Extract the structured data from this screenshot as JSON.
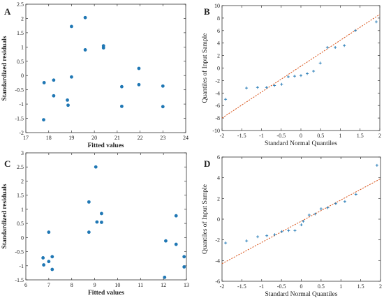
{
  "chart_data": [
    {
      "panel": "A",
      "type": "scatter",
      "xlabel": "Fitted values",
      "ylabel": "Standardized residuals",
      "xlim": [
        17,
        24
      ],
      "ylim": [
        -2,
        2.5
      ],
      "xticks": [
        17,
        18,
        19,
        20,
        21,
        22,
        23,
        24
      ],
      "xtick_labels": [
        "17",
        "18",
        "19",
        "20",
        "21",
        "22",
        "23",
        "24"
      ],
      "yticks": [
        -2,
        -1.5,
        -1,
        -0.5,
        0,
        0.5,
        1,
        1.5,
        2,
        2.5
      ],
      "ytick_labels": [
        "-2",
        "-1.5",
        "-1",
        "-0.5",
        "0",
        "0.5",
        "1",
        "1.5",
        "2",
        "2.5"
      ],
      "marker_color": "#1f77b4",
      "marker": "dot",
      "reference_line": null,
      "points": [
        {
          "x": 17.78,
          "y": -1.55
        },
        {
          "x": 17.8,
          "y": -0.25
        },
        {
          "x": 18.22,
          "y": -0.16
        },
        {
          "x": 18.22,
          "y": -0.71
        },
        {
          "x": 18.82,
          "y": -0.86
        },
        {
          "x": 18.85,
          "y": -1.04
        },
        {
          "x": 19.0,
          "y": 1.72
        },
        {
          "x": 19.0,
          "y": -0.05
        },
        {
          "x": 19.6,
          "y": 2.03
        },
        {
          "x": 19.6,
          "y": 0.9
        },
        {
          "x": 20.4,
          "y": 1.04
        },
        {
          "x": 20.4,
          "y": 0.97
        },
        {
          "x": 21.2,
          "y": -0.39
        },
        {
          "x": 21.2,
          "y": -1.08
        },
        {
          "x": 21.95,
          "y": 0.25
        },
        {
          "x": 21.95,
          "y": -0.32
        },
        {
          "x": 23.0,
          "y": -0.37
        },
        {
          "x": 23.0,
          "y": -1.09
        }
      ]
    },
    {
      "panel": "B",
      "type": "scatter",
      "xlabel": "Standard Normal Quantiles",
      "ylabel": "Quantiles of Input Sample",
      "xlim": [
        -2,
        2
      ],
      "ylim": [
        -10,
        10
      ],
      "xticks": [
        -2,
        -1.5,
        -1,
        -0.5,
        0,
        0.5,
        1,
        1.5,
        2
      ],
      "xtick_labels": [
        "-2",
        "-1.5",
        "-1",
        "-0.5",
        "0",
        "0.5",
        "1",
        "1.5",
        "2"
      ],
      "yticks": [
        -10,
        -8,
        -6,
        -4,
        -2,
        0,
        2,
        4,
        6,
        8,
        10
      ],
      "ytick_labels": [
        "-10",
        "-8",
        "-6",
        "-4",
        "-2",
        "0",
        "2",
        "4",
        "6",
        "8",
        "10"
      ],
      "marker_color": "#1f77b4",
      "marker": "plus",
      "reference_line": {
        "x": [
          -2,
          2
        ],
        "y": [
          -8.0,
          8.6
        ],
        "color": "#d9541a"
      },
      "points": [
        {
          "x": -1.91,
          "y": -5.0
        },
        {
          "x": -1.38,
          "y": -3.2
        },
        {
          "x": -1.1,
          "y": -3.1
        },
        {
          "x": -0.87,
          "y": -3.1
        },
        {
          "x": -0.67,
          "y": -2.8
        },
        {
          "x": -0.49,
          "y": -2.6
        },
        {
          "x": -0.32,
          "y": -1.4
        },
        {
          "x": -0.16,
          "y": -1.3
        },
        {
          "x": 0.0,
          "y": -1.2
        },
        {
          "x": 0.16,
          "y": -0.9
        },
        {
          "x": 0.32,
          "y": -0.5
        },
        {
          "x": 0.49,
          "y": 0.8
        },
        {
          "x": 0.67,
          "y": 3.3
        },
        {
          "x": 0.87,
          "y": 3.3
        },
        {
          "x": 1.1,
          "y": 3.6
        },
        {
          "x": 1.38,
          "y": 6.0
        },
        {
          "x": 1.91,
          "y": 7.4
        }
      ]
    },
    {
      "panel": "C",
      "type": "scatter",
      "xlabel": "Fitted values",
      "ylabel": "Standardized residuals",
      "xlim": [
        6,
        13
      ],
      "ylim": [
        -1.5,
        3
      ],
      "xticks": [
        6,
        7,
        8,
        9,
        10,
        11,
        12,
        13
      ],
      "xtick_labels": [
        "6",
        "7",
        "8",
        "9",
        "10",
        "11",
        "12",
        "13"
      ],
      "yticks": [
        -1.5,
        -1,
        -0.5,
        0,
        0.5,
        1,
        1.5,
        2,
        2.5,
        3
      ],
      "ytick_labels": [
        "-1.5",
        "-1",
        "-0.5",
        "0",
        "0.5",
        "1",
        "1.5",
        "2",
        "2.5",
        "3"
      ],
      "marker_color": "#1f77b4",
      "marker": "dot",
      "reference_line": null,
      "points": [
        {
          "x": 6.75,
          "y": -0.72
        },
        {
          "x": 6.78,
          "y": -0.97
        },
        {
          "x": 7.0,
          "y": 0.19
        },
        {
          "x": 7.0,
          "y": -0.85
        },
        {
          "x": 7.15,
          "y": -0.68
        },
        {
          "x": 7.15,
          "y": -1.13
        },
        {
          "x": 8.75,
          "y": 1.26
        },
        {
          "x": 8.75,
          "y": 0.19
        },
        {
          "x": 9.05,
          "y": 2.5
        },
        {
          "x": 9.1,
          "y": 0.55
        },
        {
          "x": 9.3,
          "y": 0.85
        },
        {
          "x": 9.3,
          "y": 0.54
        },
        {
          "x": 12.05,
          "y": -1.41
        },
        {
          "x": 12.1,
          "y": -0.12
        },
        {
          "x": 12.55,
          "y": 0.77
        },
        {
          "x": 12.55,
          "y": -0.24
        },
        {
          "x": 12.9,
          "y": -0.68
        },
        {
          "x": 12.9,
          "y": -1.04
        }
      ]
    },
    {
      "panel": "D",
      "type": "scatter",
      "xlabel": "Standard Normal Quantiles",
      "ylabel": "Quantiles of Input Sample",
      "xlim": [
        -2,
        2
      ],
      "ylim": [
        -6,
        6
      ],
      "xticks": [
        -2,
        -1.5,
        -1,
        -0.5,
        0,
        0.5,
        1,
        1.5,
        2
      ],
      "xtick_labels": [
        "-2",
        "-1.5",
        "-1",
        "-0.5",
        "0",
        "0.5",
        "1",
        "1.5",
        "2"
      ],
      "yticks": [
        -6,
        -4,
        -2,
        0,
        2,
        4,
        6
      ],
      "ytick_labels": [
        "-6",
        "-4",
        "-2",
        "0",
        "2",
        "4",
        "6"
      ],
      "marker_color": "#1f77b4",
      "marker": "plus",
      "reference_line": {
        "x": [
          -2,
          2
        ],
        "y": [
          -4.3,
          3.9
        ],
        "color": "#d9541a"
      },
      "points": [
        {
          "x": -1.91,
          "y": -2.3
        },
        {
          "x": -1.38,
          "y": -2.1
        },
        {
          "x": -1.1,
          "y": -1.7
        },
        {
          "x": -0.87,
          "y": -1.6
        },
        {
          "x": -0.67,
          "y": -1.5
        },
        {
          "x": -0.49,
          "y": -1.2
        },
        {
          "x": -0.32,
          "y": -1.1
        },
        {
          "x": -0.16,
          "y": -1.1
        },
        {
          "x": 0.0,
          "y": -0.55
        },
        {
          "x": 0.05,
          "y": -0.2
        },
        {
          "x": 0.2,
          "y": 0.4
        },
        {
          "x": 0.35,
          "y": 0.5
        },
        {
          "x": 0.5,
          "y": 1.0
        },
        {
          "x": 0.67,
          "y": 1.1
        },
        {
          "x": 0.87,
          "y": 1.5
        },
        {
          "x": 1.1,
          "y": 1.7
        },
        {
          "x": 1.38,
          "y": 2.4
        },
        {
          "x": 1.91,
          "y": 5.2
        }
      ]
    }
  ]
}
